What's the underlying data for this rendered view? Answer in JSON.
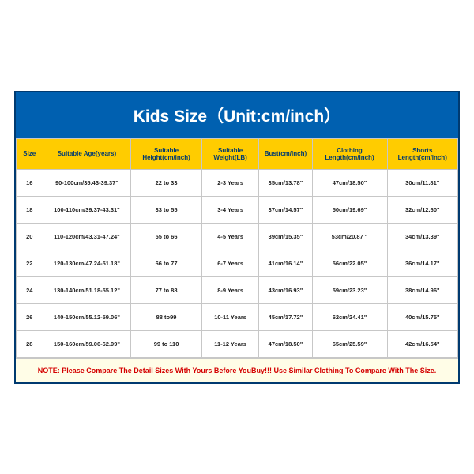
{
  "title": "Kids Size（Unit:cm/inch）",
  "title_bg": "#0060b0",
  "title_color": "#ffffff",
  "header_bg": "#ffcc00",
  "header_color": "#003a70",
  "border_color": "#003a70",
  "cell_border": "#c7c7c7",
  "note_bg": "#fffde7",
  "note_color": "#d40000",
  "columns": [
    "Size",
    "Suitable Age(years)",
    "Suitable Height(cm/inch)",
    "Suitable Weight(LB)",
    "Bust(cm/inch)",
    "Clothing Length(cm/inch)",
    "Shorts Length(cm/inch)"
  ],
  "rows": [
    [
      "16",
      "90-100cm/35.43-39.37\"",
      "22 to 33",
      "2-3 Years",
      "35cm/13.78\"",
      "47cm/18.50\"",
      "30cm/11.81\""
    ],
    [
      "18",
      "100-110cm/39.37-43.31\"",
      "33 to 55",
      "3-4 Years",
      "37cm/14.57\"",
      "50cm/19.69\"",
      "32cm/12.60\""
    ],
    [
      "20",
      "110-120cm/43.31-47.24\"",
      "55 to 66",
      "4-5 Years",
      "39cm/15.35\"",
      "53cm/20.87 \"",
      "34cm/13.39\""
    ],
    [
      "22",
      "120-130cm/47.24-51.18\"",
      "66 to 77",
      "6-7 Years",
      "41cm/16.14\"",
      "56cm/22.05\"",
      "36cm/14.17\""
    ],
    [
      "24",
      "130-140cm/51.18-55.12\"",
      "77 to 88",
      "8-9 Years",
      "43cm/16.93\"",
      "59cm/23.23\"",
      "38cm/14.96\""
    ],
    [
      "26",
      "140-150cm/55.12-59.06\"",
      "88 to99",
      "10-11 Years",
      "45cm/17.72\"",
      "62cm/24.41\"",
      "40cm/15.75\""
    ],
    [
      "28",
      "150-160cm/59.06-62.99\"",
      "99 to 110",
      "11-12 Years",
      "47cm/18.50\"",
      "65cm/25.59\"",
      "42cm/16.54\""
    ]
  ],
  "note": "NOTE: Please Compare The Detail Sizes With Yours Before YouBuy!!! Use Similar Clothing To Compare With The Size."
}
